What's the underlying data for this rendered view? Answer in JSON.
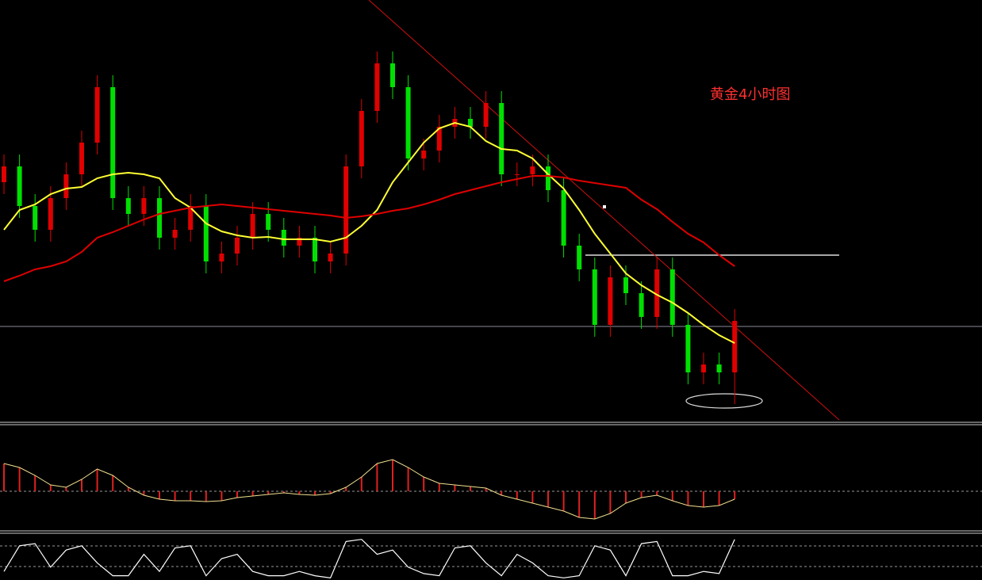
{
  "chart_data": {
    "type": "candlestick",
    "title": "黄金4小时图",
    "ylim": [
      0,
      530
    ],
    "up_color": "#e00000",
    "down_color": "#00e000",
    "open": [
      300,
      320,
      270,
      240,
      280,
      310,
      350,
      420,
      280,
      260,
      280,
      230,
      240,
      270,
      200,
      210,
      230,
      260,
      240,
      220,
      230,
      200,
      210,
      320,
      390,
      450,
      420,
      330,
      340,
      370,
      380,
      370,
      400,
      310,
      310,
      320,
      290,
      220,
      190,
      120,
      180,
      160,
      130,
      190,
      120,
      60,
      70,
      60
    ],
    "high": [
      335,
      335,
      285,
      295,
      325,
      365,
      435,
      435,
      295,
      295,
      295,
      255,
      285,
      285,
      225,
      245,
      275,
      275,
      255,
      245,
      245,
      225,
      335,
      405,
      465,
      465,
      435,
      355,
      385,
      395,
      395,
      415,
      415,
      325,
      335,
      335,
      305,
      235,
      205,
      195,
      195,
      175,
      205,
      205,
      135,
      85,
      85,
      140
    ],
    "low": [
      285,
      255,
      225,
      225,
      265,
      295,
      335,
      265,
      245,
      245,
      215,
      215,
      225,
      185,
      185,
      195,
      215,
      225,
      205,
      205,
      185,
      185,
      195,
      305,
      375,
      405,
      315,
      315,
      325,
      355,
      355,
      355,
      295,
      295,
      295,
      275,
      205,
      175,
      105,
      105,
      145,
      115,
      115,
      105,
      45,
      45,
      45,
      20
    ],
    "close": [
      320,
      270,
      240,
      280,
      310,
      350,
      420,
      280,
      260,
      280,
      230,
      240,
      270,
      200,
      210,
      230,
      260,
      240,
      220,
      230,
      200,
      210,
      320,
      390,
      450,
      420,
      330,
      340,
      370,
      380,
      370,
      400,
      310,
      310,
      320,
      290,
      220,
      190,
      120,
      180,
      160,
      130,
      190,
      120,
      60,
      70,
      60,
      125
    ],
    "series": [
      {
        "color": "#ffff33",
        "values": [
          240,
          265,
          272,
          285,
          292,
          294,
          305,
          310,
          312,
          310,
          305,
          280,
          268,
          248,
          238,
          233,
          230,
          231,
          228,
          228,
          228,
          225,
          230,
          245,
          265,
          300,
          325,
          350,
          368,
          375,
          370,
          352,
          342,
          340,
          330,
          310,
          292,
          265,
          235,
          210,
          185,
          170,
          158,
          148,
          135,
          120,
          107,
          97
        ]
      },
      {
        "color": "#e00000",
        "values": [
          175,
          182,
          190,
          194,
          200,
          212,
          230,
          237,
          245,
          253,
          260,
          264,
          268,
          270,
          272,
          270,
          268,
          266,
          264,
          262,
          260,
          258,
          255,
          257,
          260,
          264,
          267,
          272,
          278,
          285,
          290,
          295,
          300,
          304,
          308,
          308,
          306,
          302,
          299,
          296,
          293,
          278,
          266,
          250,
          235,
          224,
          208,
          194
        ]
      }
    ],
    "macd": {
      "ylim": [
        -50,
        80
      ],
      "color": "#e02020",
      "values": [
        35,
        30,
        20,
        8,
        5,
        15,
        28,
        20,
        5,
        -5,
        -10,
        -12,
        -12,
        -13,
        -12,
        -8,
        -6,
        -4,
        -2,
        -4,
        -5,
        -3,
        5,
        18,
        35,
        40,
        30,
        18,
        10,
        8,
        6,
        4,
        -5,
        -10,
        -15,
        -20,
        -25,
        -33,
        -35,
        -28,
        -15,
        -8,
        -5,
        -12,
        -18,
        -20,
        -18,
        -10
      ]
    },
    "stoch": {
      "ylim": [
        0,
        100
      ],
      "color": "#ffffff",
      "values": [
        20,
        80,
        85,
        30,
        70,
        80,
        40,
        10,
        10,
        60,
        20,
        75,
        80,
        10,
        50,
        60,
        20,
        10,
        10,
        20,
        10,
        5,
        90,
        95,
        60,
        70,
        30,
        15,
        10,
        75,
        80,
        40,
        10,
        60,
        40,
        10,
        5,
        10,
        80,
        70,
        10,
        85,
        90,
        10,
        10,
        20,
        15,
        95
      ]
    }
  }
}
